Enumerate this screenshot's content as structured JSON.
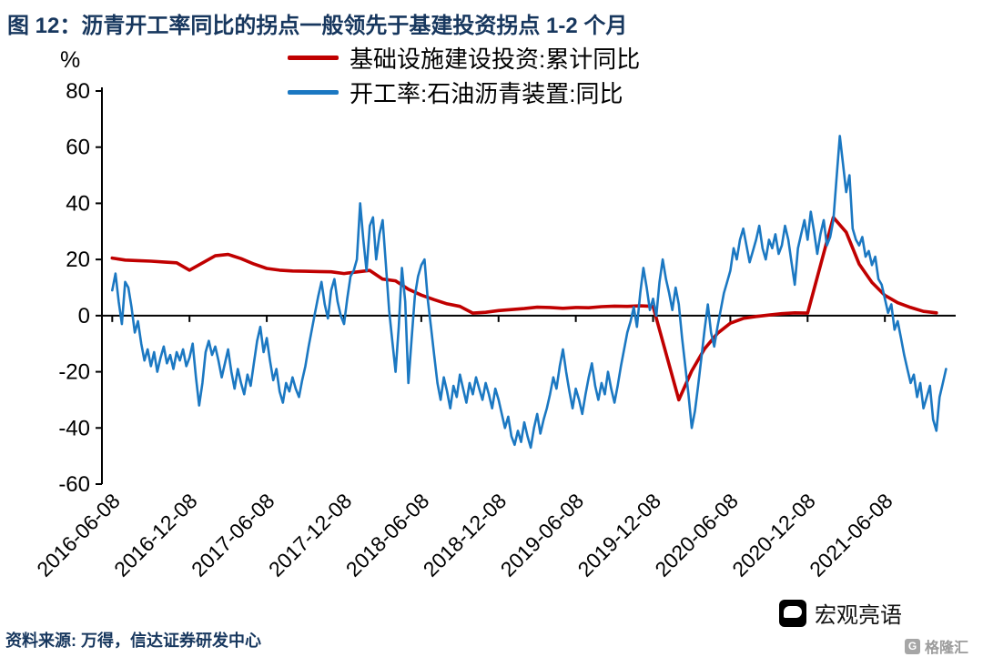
{
  "header": {
    "title": "图 12：沥青开工率同比的拐点一般领先于基建投资拐点 1-2 个月",
    "title_color": "#17375E"
  },
  "chart_data": {
    "type": "line",
    "title": "图 12：沥青开工率同比的拐点一般领先于基建投资拐点 1-2 个月",
    "legend_position": "top-center",
    "grid": false,
    "y_axis": {
      "unit": "%",
      "min": -60,
      "max": 80,
      "ticks": [
        80,
        60,
        40,
        20,
        0,
        -20,
        -40,
        -60
      ]
    },
    "x_axis": {
      "tick_months": [
        0,
        6,
        12,
        18,
        24,
        30,
        36,
        42,
        48,
        54,
        60
      ],
      "tick_labels": [
        "2016-06-08",
        "2016-12-08",
        "2017-06-08",
        "2017-12-08",
        "2018-06-08",
        "2018-12-08",
        "2019-06-08",
        "2019-12-08",
        "2020-06-08",
        "2020-12-08",
        "2021-06-08"
      ]
    },
    "series": [
      {
        "id": "infrastructure-investment",
        "name": "基础设施建设投资:累计同比",
        "color": "#C00000",
        "width": 3.6,
        "points": [
          [
            0,
            20.5
          ],
          [
            1,
            19.8
          ],
          [
            2,
            19.6
          ],
          [
            3,
            19.4
          ],
          [
            4,
            19.1
          ],
          [
            5,
            18.8
          ],
          [
            6,
            16.2
          ],
          [
            8,
            21.3
          ],
          [
            9,
            21.8
          ],
          [
            10,
            20.3
          ],
          [
            11,
            18.4
          ],
          [
            12,
            16.8
          ],
          [
            13,
            16.2
          ],
          [
            14,
            15.9
          ],
          [
            15,
            15.8
          ],
          [
            16,
            15.7
          ],
          [
            17,
            15.6
          ],
          [
            18,
            15.0
          ],
          [
            20,
            16.1
          ],
          [
            21,
            13.0
          ],
          [
            22,
            12.4
          ],
          [
            23,
            9.4
          ],
          [
            24,
            7.3
          ],
          [
            25,
            5.7
          ],
          [
            26,
            4.2
          ],
          [
            27,
            3.3
          ],
          [
            28,
            0.9
          ],
          [
            29,
            1.2
          ],
          [
            30,
            1.8
          ],
          [
            32,
            2.5
          ],
          [
            33,
            3.0
          ],
          [
            34,
            2.9
          ],
          [
            35,
            2.6
          ],
          [
            36,
            2.9
          ],
          [
            37,
            2.8
          ],
          [
            38,
            3.2
          ],
          [
            39,
            3.4
          ],
          [
            40,
            3.3
          ],
          [
            41,
            3.5
          ],
          [
            42,
            3.3
          ],
          [
            44,
            -30.0
          ],
          [
            45,
            -19.7
          ],
          [
            46,
            -11.8
          ],
          [
            47,
            -6.3
          ],
          [
            48,
            -2.7
          ],
          [
            49,
            -1.0
          ],
          [
            50,
            -0.3
          ],
          [
            51,
            0.2
          ],
          [
            52,
            0.7
          ],
          [
            53,
            1.0
          ],
          [
            54,
            0.9
          ],
          [
            56,
            35.0
          ],
          [
            57,
            29.7
          ],
          [
            58,
            18.4
          ],
          [
            59,
            11.8
          ],
          [
            60,
            7.2
          ],
          [
            61,
            4.6
          ],
          [
            62,
            2.9
          ],
          [
            63,
            1.5
          ],
          [
            64,
            1.0
          ]
        ]
      },
      {
        "id": "asphalt-operating-rate",
        "name": "开工率:石油沥青装置:同比",
        "color": "#1B78C2",
        "width": 2.6,
        "start_month": 0,
        "step_months": 0.25,
        "values": [
          9,
          15,
          5,
          -3,
          12,
          10,
          3,
          -6,
          -2,
          -10,
          -16,
          -12,
          -18,
          -13,
          -20,
          -15,
          -11,
          -17,
          -14,
          -19,
          -13,
          -16,
          -12,
          -18,
          -15,
          -10,
          -22,
          -32,
          -24,
          -13,
          -9,
          -14,
          -11,
          -16,
          -22,
          -17,
          -12,
          -20,
          -26,
          -19,
          -24,
          -28,
          -21,
          -25,
          -17,
          -9,
          -4,
          -13,
          -8,
          -16,
          -23,
          -19,
          -27,
          -31,
          -24,
          -27,
          -22,
          -26,
          -29,
          -23,
          -18,
          -11,
          -5,
          1,
          7,
          12,
          4,
          -1,
          9,
          13,
          5,
          0,
          -3,
          6,
          14,
          16,
          20,
          40,
          27,
          16,
          32,
          35,
          20,
          29,
          34,
          18,
          2,
          -9,
          -20,
          -4,
          17,
          5,
          -24,
          -8,
          7,
          14,
          18,
          20,
          6,
          -4,
          -14,
          -24,
          -30,
          -22,
          -27,
          -33,
          -25,
          -29,
          -21,
          -26,
          -31,
          -24,
          -28,
          -22,
          -26,
          -30,
          -24,
          -28,
          -33,
          -26,
          -30,
          -35,
          -40,
          -36,
          -43,
          -46,
          -41,
          -45,
          -38,
          -43,
          -47,
          -40,
          -35,
          -42,
          -37,
          -33,
          -28,
          -22,
          -26,
          -18,
          -12,
          -20,
          -27,
          -33,
          -26,
          -30,
          -35,
          -28,
          -22,
          -17,
          -25,
          -30,
          -24,
          -28,
          -20,
          -26,
          -31,
          -25,
          -18,
          -12,
          -6,
          -2,
          3,
          -4,
          8,
          17,
          10,
          2,
          6,
          0,
          12,
          20,
          13,
          8,
          2,
          10,
          4,
          -8,
          -18,
          -28,
          -40,
          -34,
          -25,
          -15,
          -5,
          4,
          -6,
          -11,
          -4,
          2,
          8,
          12,
          16,
          24,
          20,
          27,
          31,
          25,
          19,
          23,
          27,
          32,
          24,
          20,
          27,
          24,
          29,
          22,
          25,
          32,
          27,
          19,
          11,
          24,
          29,
          34,
          27,
          37,
          30,
          22,
          29,
          34,
          25,
          28,
          34,
          49,
          64,
          54,
          44,
          50,
          31,
          27,
          25,
          28,
          21,
          23,
          18,
          21,
          13,
          11,
          6,
          1,
          4,
          -5,
          -2,
          -8,
          -14,
          -19,
          -24,
          -21,
          -29,
          -24,
          -33,
          -29,
          -25,
          -37,
          -41,
          -29,
          -24,
          -19
        ]
      }
    ]
  },
  "footer": {
    "source": "资料来源: 万得，信达证券研发中心",
    "source_color": "#17375E",
    "brand": "宏观亮语",
    "watermark": "格隆汇",
    "watermark_icon": "G"
  }
}
